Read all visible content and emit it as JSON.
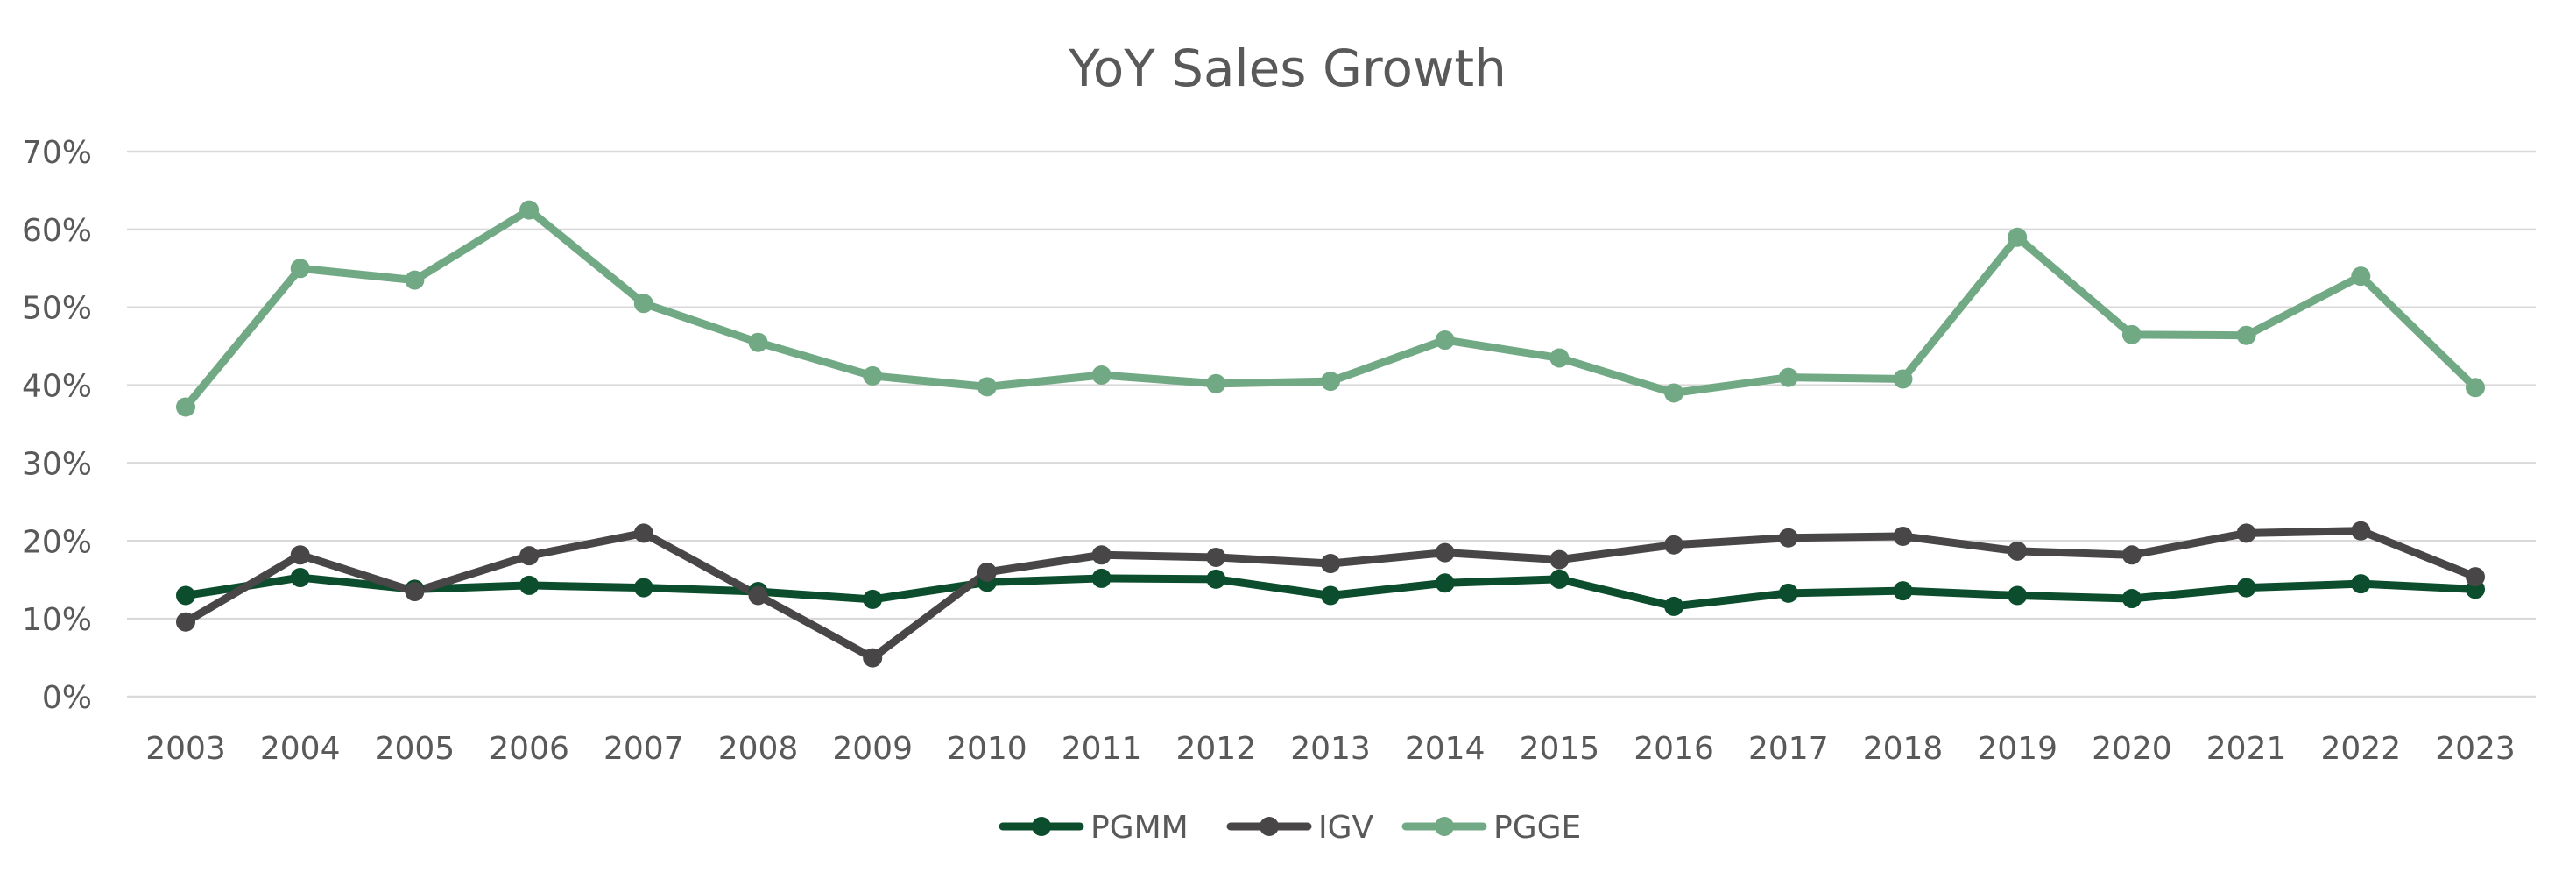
{
  "chart_data": {
    "type": "line",
    "title": "YoY Sales Growth",
    "xlabel": "",
    "ylabel": "",
    "x": [
      "2003",
      "2004",
      "2005",
      "2006",
      "2007",
      "2008",
      "2009",
      "2010",
      "2011",
      "2012",
      "2013",
      "2014",
      "2015",
      "2016",
      "2017",
      "2018",
      "2019",
      "2020",
      "2021",
      "2022",
      "2023"
    ],
    "yticks": [
      "0%",
      "10%",
      "20%",
      "30%",
      "40%",
      "50%",
      "60%",
      "70%"
    ],
    "ylim": [
      0,
      70
    ],
    "grid": true,
    "legend": "bottom",
    "series": [
      {
        "name": "PGMM",
        "color": "#0b4d2c",
        "values": [
          13,
          15.3,
          13.8,
          14.3,
          14,
          13.5,
          12.5,
          14.7,
          15.2,
          15.1,
          13,
          14.6,
          15.1,
          11.6,
          13.3,
          13.6,
          13,
          12.6,
          14,
          14.5,
          13.8
        ]
      },
      {
        "name": "IGV",
        "color": "#484647",
        "values": [
          9.6,
          18.2,
          13.5,
          18.1,
          21,
          13,
          5,
          16,
          18.2,
          17.9,
          17.1,
          18.5,
          17.6,
          19.5,
          20.4,
          20.6,
          18.7,
          18.2,
          21,
          21.3,
          15.4
        ]
      },
      {
        "name": "PGGE",
        "color": "#72a985",
        "values": [
          37.2,
          55,
          53.5,
          62.5,
          50.5,
          45.5,
          41.2,
          39.8,
          41.3,
          40.2,
          40.5,
          45.8,
          43.5,
          39,
          41,
          40.8,
          59,
          46.5,
          46.4,
          54,
          39.7
        ]
      }
    ]
  }
}
